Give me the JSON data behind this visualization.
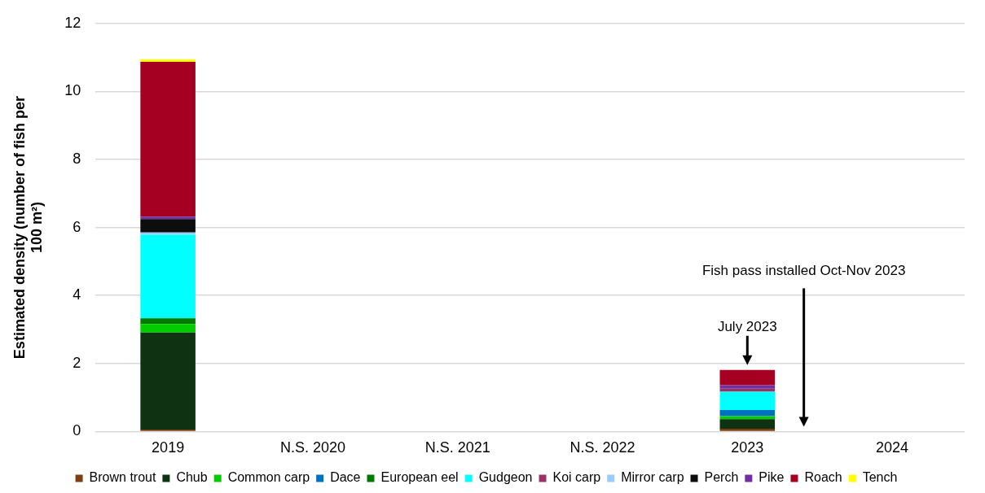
{
  "chart_data": {
    "type": "bar",
    "stacked": true,
    "ylabel": "Estimated density (number of fish per 100 m²)",
    "categories": [
      "2019",
      "N.S. 2020",
      "N.S. 2021",
      "N.S. 2022",
      "2023",
      "2024"
    ],
    "ylim": [
      0,
      12
    ],
    "yticks": [
      0,
      2,
      4,
      6,
      8,
      10,
      12
    ],
    "grid": "y",
    "legend": "bottom",
    "series": [
      {
        "name": "Brown trout",
        "color": "#7b3f12",
        "values": [
          0.06,
          null,
          null,
          null,
          0.08,
          null
        ]
      },
      {
        "name": "Chub",
        "color": "#0e3212",
        "values": [
          2.85,
          null,
          null,
          null,
          0.28,
          null
        ]
      },
      {
        "name": "Common carp",
        "color": "#00cc00",
        "values": [
          0.25,
          null,
          null,
          null,
          0.09,
          null
        ]
      },
      {
        "name": "Dace",
        "color": "#0070c0",
        "values": [
          null,
          null,
          null,
          null,
          0.18,
          null
        ]
      },
      {
        "name": "European eel",
        "color": "#007a00",
        "values": [
          0.17,
          null,
          null,
          null,
          null,
          null
        ]
      },
      {
        "name": "Gudgeon",
        "color": "#00ffff",
        "values": [
          2.46,
          null,
          null,
          null,
          0.54,
          null
        ]
      },
      {
        "name": "Koi carp",
        "color": "#993366",
        "values": [
          null,
          null,
          null,
          null,
          0.09,
          null
        ]
      },
      {
        "name": "Mirror carp",
        "color": "#99ccff",
        "values": [
          0.06,
          null,
          null,
          null,
          null,
          null
        ]
      },
      {
        "name": "Perch",
        "color": "#0d0d0d",
        "values": [
          0.4,
          null,
          null,
          null,
          null,
          null
        ]
      },
      {
        "name": "Pike",
        "color": "#7030a0",
        "values": [
          0.07,
          null,
          null,
          null,
          0.1,
          null
        ]
      },
      {
        "name": "Roach",
        "color": "#a50021",
        "values": [
          4.55,
          null,
          null,
          null,
          0.45,
          null
        ]
      },
      {
        "name": "Tench",
        "color": "#ffff00",
        "values": [
          0.07,
          null,
          null,
          null,
          null,
          null
        ]
      }
    ],
    "annotations": [
      {
        "text": "July 2023",
        "x": "2023",
        "y": 1.81
      },
      "Fish pass installed Oct-Nov 2023"
    ]
  }
}
